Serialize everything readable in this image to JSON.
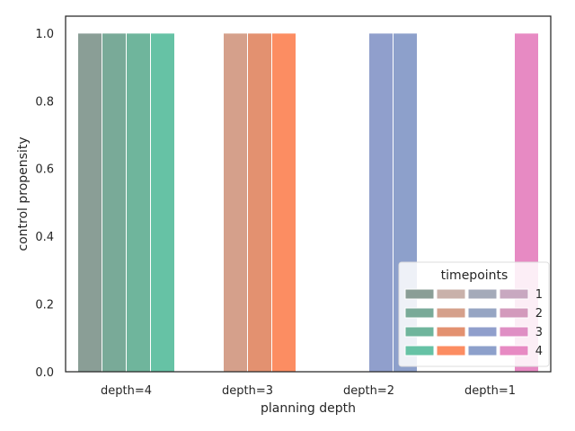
{
  "chart_data": {
    "type": "bar",
    "xlabel": "planning depth",
    "ylabel": "control propensity",
    "categories": [
      "depth=4",
      "depth=3",
      "depth=2",
      "depth=1"
    ],
    "ylim": [
      0,
      1.05
    ],
    "yticks": [
      0.0,
      0.2,
      0.4,
      0.6,
      0.8,
      1.0
    ],
    "ytick_labels": [
      "0.0",
      "0.2",
      "0.4",
      "0.6",
      "0.8",
      "1.0"
    ],
    "grid": false,
    "legend": {
      "title": "timepoints",
      "placement": "lower-right",
      "entries": [
        "1",
        "2",
        "3",
        "4"
      ]
    },
    "series": [
      {
        "name": "1",
        "values": [
          1.0,
          null,
          null,
          null
        ]
      },
      {
        "name": "2",
        "values": [
          1.0,
          1.0,
          null,
          null
        ]
      },
      {
        "name": "3",
        "values": [
          1.0,
          1.0,
          1.0,
          null
        ]
      },
      {
        "name": "4",
        "values": [
          1.0,
          1.0,
          1.0,
          1.0
        ]
      }
    ],
    "colors": [
      [
        "#8a9e96",
        "#79aa98",
        "#6fb59c",
        "#66c2a5"
      ],
      [
        "#c9b1aa",
        "#d5a08b",
        "#e39170",
        "#fc8d62"
      ],
      [
        "#a4aab9",
        "#96a5c3",
        "#909fcc",
        "#8da0cb"
      ],
      [
        "#c8a8c0",
        "#d39abc",
        "#df8fc4",
        "#e78ac3"
      ]
    ]
  }
}
